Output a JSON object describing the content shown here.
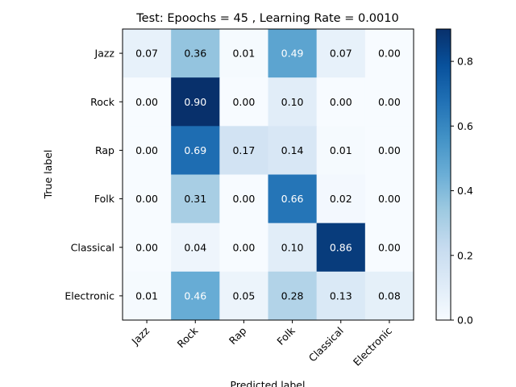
{
  "chart_data": {
    "type": "heatmap",
    "title": "Test: Epoochs =  45 , Learning Rate = 0.0010",
    "xlabel": "Predicted label",
    "ylabel": "True label",
    "row_labels": [
      "Jazz",
      "Rock",
      "Rap",
      "Folk",
      "Classical",
      "Electronic"
    ],
    "col_labels": [
      "Jazz",
      "Rock",
      "Rap",
      "Folk",
      "Classical",
      "Electronic"
    ],
    "values": [
      [
        0.07,
        0.36,
        0.01,
        0.49,
        0.07,
        0.0
      ],
      [
        0.0,
        0.9,
        0.0,
        0.1,
        0.0,
        0.0
      ],
      [
        0.0,
        0.69,
        0.17,
        0.14,
        0.01,
        0.0
      ],
      [
        0.0,
        0.31,
        0.0,
        0.66,
        0.02,
        0.0
      ],
      [
        0.0,
        0.04,
        0.0,
        0.1,
        0.86,
        0.0
      ],
      [
        0.01,
        0.46,
        0.05,
        0.28,
        0.13,
        0.08
      ]
    ],
    "value_format": "0.00",
    "colormap": "Blues",
    "colorbar": {
      "range": [
        0,
        0.9
      ],
      "ticks": [
        0.0,
        0.2,
        0.4,
        0.6,
        0.8
      ],
      "tick_labels": [
        "0.0",
        "0.2",
        "0.4",
        "0.6",
        "0.8"
      ]
    },
    "text_color_dark": "#000000",
    "text_color_light": "#ffffff",
    "text_threshold": 0.45
  }
}
